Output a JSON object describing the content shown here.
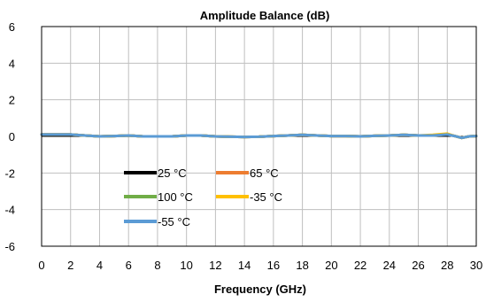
{
  "chart_data": {
    "type": "line",
    "title": "Amplitude Balance (dB)",
    "xlabel": "Frequency (GHz)",
    "ylabel": "",
    "xlim": [
      0,
      30
    ],
    "ylim": [
      -6,
      6
    ],
    "xticks": [
      0,
      2,
      4,
      6,
      8,
      10,
      12,
      14,
      16,
      18,
      20,
      22,
      24,
      26,
      28,
      30
    ],
    "yticks": [
      -6,
      -4,
      -2,
      0,
      2,
      4,
      6
    ],
    "grid": true,
    "legend_position": "inside-lower-left",
    "x": [
      0,
      1,
      2,
      3,
      4,
      5,
      6,
      7,
      8,
      9,
      10,
      11,
      12,
      13,
      14,
      15,
      16,
      17,
      18,
      19,
      20,
      21,
      22,
      23,
      24,
      25,
      26,
      27,
      28,
      28.5,
      29,
      29.5,
      30
    ],
    "series": [
      {
        "name": "25 °C",
        "color": "#000000",
        "values": [
          0.1,
          0.1,
          0.1,
          0.05,
          0.0,
          0.02,
          0.05,
          0.0,
          0.0,
          0.0,
          0.05,
          0.05,
          0.0,
          -0.02,
          -0.03,
          -0.02,
          0.02,
          0.05,
          0.08,
          0.05,
          0.02,
          0.02,
          0.0,
          0.03,
          0.05,
          0.08,
          0.05,
          0.05,
          0.12,
          0.02,
          -0.08,
          0.0,
          0.02
        ]
      },
      {
        "name": "65 °C",
        "color": "#ed7d31",
        "values": [
          0.1,
          0.1,
          0.1,
          0.05,
          0.0,
          0.02,
          0.05,
          0.0,
          0.0,
          0.0,
          0.05,
          0.05,
          0.0,
          -0.02,
          -0.03,
          -0.02,
          0.02,
          0.05,
          0.08,
          0.05,
          0.02,
          0.02,
          0.0,
          0.03,
          0.05,
          0.08,
          0.05,
          0.05,
          0.12,
          0.02,
          -0.08,
          0.0,
          0.02
        ]
      },
      {
        "name": "100 °C",
        "color": "#70ad47",
        "values": [
          0.1,
          0.1,
          0.1,
          0.05,
          0.0,
          0.02,
          0.05,
          0.0,
          0.0,
          0.0,
          0.05,
          0.05,
          0.0,
          -0.02,
          -0.03,
          -0.02,
          0.02,
          0.05,
          0.08,
          0.05,
          0.02,
          0.02,
          0.0,
          0.03,
          0.05,
          0.08,
          0.05,
          0.05,
          0.12,
          0.02,
          -0.08,
          0.0,
          0.02
        ]
      },
      {
        "name": "-35 °C",
        "color": "#ffc000",
        "values": [
          0.1,
          0.1,
          0.1,
          0.05,
          0.0,
          0.02,
          0.05,
          0.0,
          0.0,
          0.0,
          0.05,
          0.05,
          0.0,
          -0.02,
          -0.03,
          -0.02,
          0.02,
          0.05,
          0.08,
          0.05,
          0.02,
          0.02,
          0.0,
          0.03,
          0.05,
          0.08,
          0.05,
          0.08,
          0.15,
          0.02,
          -0.08,
          0.0,
          0.02
        ]
      },
      {
        "name": "-55 °C",
        "color": "#5b9bd5",
        "values": [
          0.1,
          0.1,
          0.1,
          0.05,
          0.0,
          0.02,
          0.05,
          0.0,
          0.0,
          0.0,
          0.05,
          0.05,
          0.0,
          -0.02,
          -0.03,
          -0.02,
          0.02,
          0.05,
          0.08,
          0.05,
          0.02,
          0.02,
          0.0,
          0.03,
          0.05,
          0.08,
          0.05,
          0.05,
          0.1,
          0.02,
          -0.08,
          0.0,
          0.02
        ]
      }
    ]
  }
}
